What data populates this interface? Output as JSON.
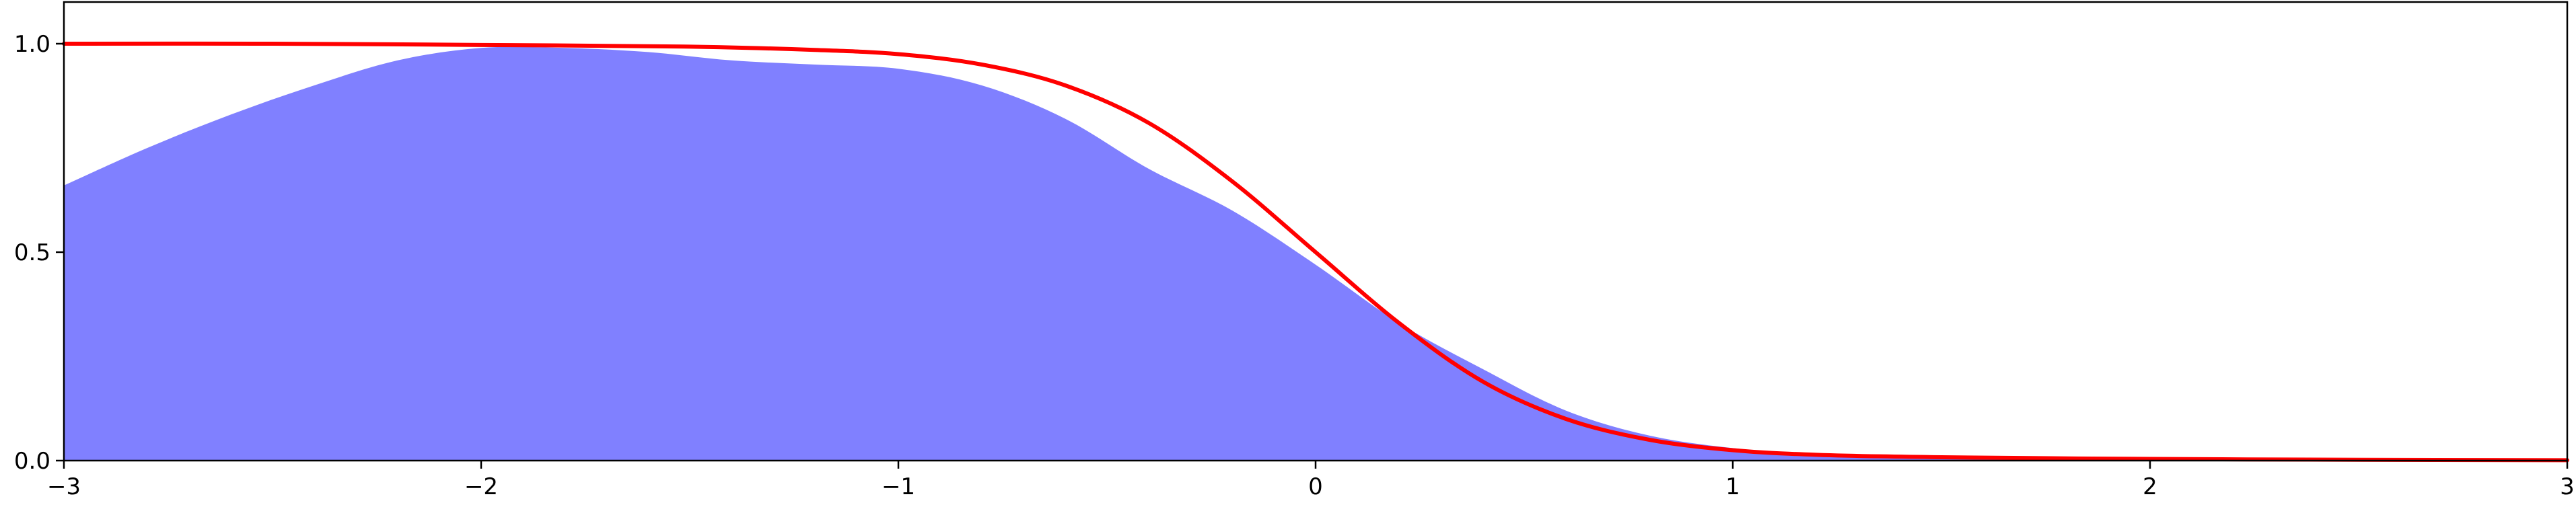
{
  "chart_data": {
    "type": "area",
    "title": "",
    "xlabel": "",
    "ylabel": "",
    "xlim": [
      -3,
      3
    ],
    "ylim": [
      0,
      1.1
    ],
    "grid": false,
    "legend": "none",
    "x_ticks": [
      {
        "value": -3,
        "label": "−3"
      },
      {
        "value": -2,
        "label": "−2"
      },
      {
        "value": -1,
        "label": "−1"
      },
      {
        "value": 0,
        "label": "0"
      },
      {
        "value": 1,
        "label": "1"
      },
      {
        "value": 2,
        "label": "2"
      },
      {
        "value": 3,
        "label": "3"
      }
    ],
    "y_ticks": [
      {
        "value": 0.0,
        "label": "0.0"
      },
      {
        "value": 0.5,
        "label": "0.5"
      },
      {
        "value": 1.0,
        "label": "1.0"
      }
    ],
    "series": [
      {
        "kind": "area",
        "color": "#8080ff",
        "x": [
          -3,
          -2.8,
          -2.6,
          -2.4,
          -2.2,
          -2.0,
          -1.8,
          -1.6,
          -1.4,
          -1.2,
          -1.0,
          -0.8,
          -0.6,
          -0.4,
          -0.2,
          0.0,
          0.2,
          0.4,
          0.6,
          0.8,
          1.0,
          1.2,
          1.5,
          2.0,
          3.0
        ],
        "y": [
          0.66,
          0.75,
          0.83,
          0.9,
          0.96,
          0.99,
          0.99,
          0.98,
          0.96,
          0.95,
          0.94,
          0.9,
          0.82,
          0.7,
          0.6,
          0.47,
          0.33,
          0.22,
          0.12,
          0.06,
          0.03,
          0.015,
          0.005,
          0.002,
          0.0
        ]
      },
      {
        "kind": "line",
        "color": "#ff0000",
        "x": [
          -3,
          -2.5,
          -2.0,
          -1.5,
          -1.2,
          -1.0,
          -0.8,
          -0.6,
          -0.4,
          -0.2,
          0.0,
          0.2,
          0.4,
          0.6,
          0.8,
          1.0,
          1.2,
          1.5,
          2.0,
          2.5,
          3.0
        ],
        "y": [
          1.0,
          1.0,
          0.997,
          0.993,
          0.985,
          0.975,
          0.95,
          0.9,
          0.81,
          0.67,
          0.5,
          0.33,
          0.19,
          0.1,
          0.05,
          0.025,
          0.014,
          0.008,
          0.004,
          0.002,
          0.001
        ]
      }
    ]
  }
}
